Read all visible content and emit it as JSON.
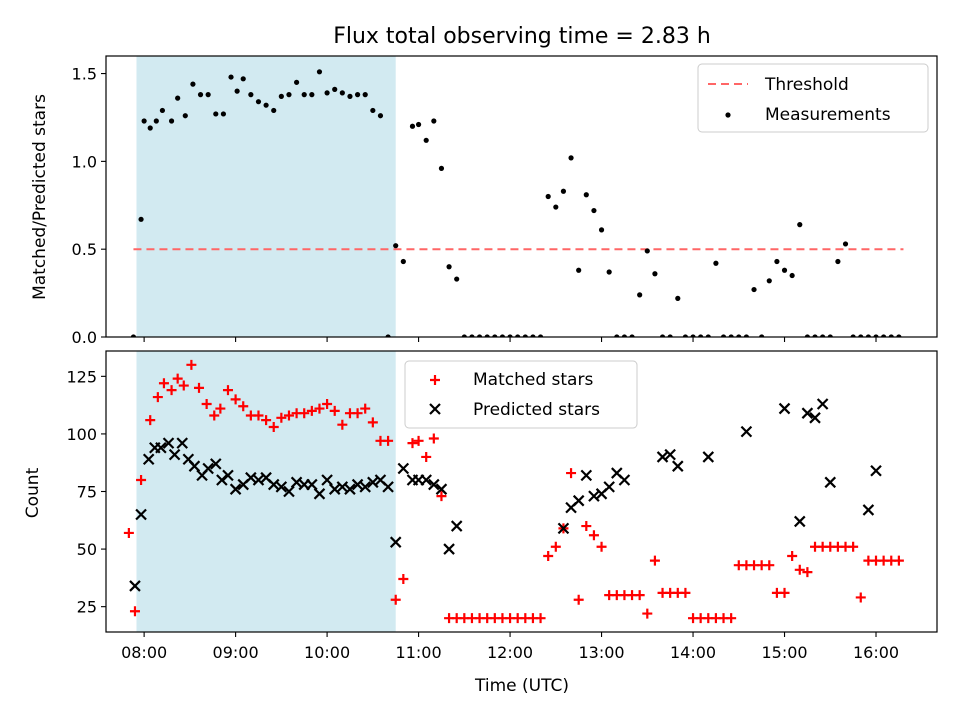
{
  "chart_data": [
    {
      "type": "scatter",
      "title": "Flux total observing time = 2.83 h",
      "xlabel": "",
      "ylabel": "Matched/Predicted stars",
      "xlim": [
        "07:35",
        "16:40"
      ],
      "ylim": [
        0,
        1.6
      ],
      "y_ticks": [
        "0.0",
        "0.5",
        "1.0",
        "1.5"
      ],
      "x_ticks_hours": [
        8,
        9,
        10,
        11,
        12,
        13,
        14,
        15,
        16
      ],
      "shaded_interval": [
        "07:55",
        "10:45"
      ],
      "shade_color": "#add8e6",
      "threshold": {
        "name": "Threshold",
        "y": 0.5,
        "x_range": [
          "07:53",
          "16:18"
        ],
        "color": "#ff6666",
        "style": "dashed"
      },
      "legend": {
        "position": "top-right",
        "entries": [
          "Threshold",
          "Measurements"
        ]
      },
      "series": [
        {
          "name": "Measurements",
          "marker": "dot",
          "color": "#000000",
          "x": [
            "07:53",
            "07:58",
            "08:00",
            "08:04",
            "08:08",
            "08:12",
            "08:18",
            "08:22",
            "08:27",
            "08:32",
            "08:37",
            "08:42",
            "08:47",
            "08:52",
            "08:57",
            "09:01",
            "09:05",
            "09:10",
            "09:15",
            "09:20",
            "09:25",
            "09:30",
            "09:35",
            "09:40",
            "09:45",
            "09:50",
            "09:55",
            "10:00",
            "10:05",
            "10:10",
            "10:15",
            "10:20",
            "10:25",
            "10:30",
            "10:35",
            "10:40",
            "10:45",
            "10:50",
            "10:56",
            "11:00",
            "11:05",
            "11:10",
            "11:15",
            "11:20",
            "11:25",
            "11:30",
            "11:35",
            "11:40",
            "11:45",
            "11:50",
            "11:55",
            "12:00",
            "12:05",
            "12:10",
            "12:15",
            "12:20",
            "12:25",
            "12:30",
            "12:35",
            "12:40",
            "12:45",
            "12:50",
            "12:55",
            "13:00",
            "13:05",
            "13:10",
            "13:15",
            "13:20",
            "13:25",
            "13:30",
            "13:35",
            "13:40",
            "13:45",
            "13:50",
            "13:55",
            "14:00",
            "14:05",
            "14:10",
            "14:15",
            "14:20",
            "14:25",
            "14:30",
            "14:35",
            "14:40",
            "14:45",
            "14:50",
            "14:55",
            "15:00",
            "15:05",
            "15:10",
            "15:15",
            "15:20",
            "15:25",
            "15:30",
            "15:35",
            "15:40",
            "15:45",
            "15:50",
            "15:55",
            "16:00",
            "16:05",
            "16:10",
            "16:15"
          ],
          "y": [
            0.0,
            0.67,
            1.23,
            1.19,
            1.23,
            1.29,
            1.23,
            1.36,
            1.26,
            1.44,
            1.38,
            1.38,
            1.27,
            1.27,
            1.48,
            1.4,
            1.47,
            1.38,
            1.34,
            1.32,
            1.29,
            1.37,
            1.38,
            1.45,
            1.38,
            1.38,
            1.51,
            1.39,
            1.41,
            1.39,
            1.37,
            1.38,
            1.38,
            1.29,
            1.26,
            0.0,
            0.52,
            0.43,
            1.2,
            1.21,
            1.12,
            1.23,
            0.96,
            0.4,
            0.33,
            0.0,
            0.0,
            0.0,
            0.0,
            0.0,
            0.0,
            0.0,
            0.0,
            0.0,
            0.0,
            0.0,
            0.8,
            0.74,
            0.83,
            1.02,
            0.38,
            0.81,
            0.72,
            0.61,
            0.37,
            0.0,
            0.0,
            0.0,
            0.24,
            0.49,
            0.36,
            0.0,
            0.0,
            0.22,
            0.0,
            0.0,
            0.0,
            0.0,
            0.42,
            0.0,
            0.0,
            0.0,
            0.0,
            0.27,
            0.0,
            0.32,
            0.43,
            0.38,
            0.35,
            0.64,
            0.0,
            0.0,
            0.0,
            0.0,
            0.43,
            0.53,
            0.0,
            0.0,
            0.0,
            0.0,
            0.0,
            0.0,
            0.0
          ]
        }
      ]
    },
    {
      "type": "scatter",
      "title": "",
      "xlabel": "Time (UTC)",
      "ylabel": "Count",
      "xlim": [
        "07:35",
        "16:40"
      ],
      "ylim": [
        14,
        136
      ],
      "y_ticks": [
        "25",
        "50",
        "75",
        "100",
        "125"
      ],
      "x_ticks": [
        "08:00",
        "09:00",
        "10:00",
        "11:00",
        "12:00",
        "13:00",
        "14:00",
        "15:00",
        "16:00"
      ],
      "shaded_interval": [
        "07:55",
        "10:45"
      ],
      "shade_color": "#add8e6",
      "legend": {
        "position": "top-center",
        "entries": [
          "Matched stars",
          "Predicted stars"
        ]
      },
      "series": [
        {
          "name": "Matched stars",
          "marker": "plus",
          "color": "#ff0000",
          "x": [
            "07:50",
            "07:54",
            "07:58",
            "08:04",
            "08:09",
            "08:13",
            "08:18",
            "08:22",
            "08:26",
            "08:31",
            "08:36",
            "08:41",
            "08:46",
            "08:50",
            "08:55",
            "09:00",
            "09:05",
            "09:10",
            "09:15",
            "09:20",
            "09:25",
            "09:30",
            "09:35",
            "09:40",
            "09:45",
            "09:50",
            "09:55",
            "10:00",
            "10:05",
            "10:10",
            "10:15",
            "10:20",
            "10:25",
            "10:30",
            "10:35",
            "10:40",
            "10:45",
            "10:50",
            "10:56",
            "11:00",
            "11:05",
            "11:10",
            "11:15",
            "11:20",
            "11:25",
            "11:30",
            "11:35",
            "11:40",
            "11:45",
            "11:50",
            "11:55",
            "12:00",
            "12:05",
            "12:10",
            "12:15",
            "12:20",
            "12:25",
            "12:30",
            "12:35",
            "12:40",
            "12:45",
            "12:50",
            "12:55",
            "13:00",
            "13:05",
            "13:10",
            "13:15",
            "13:20",
            "13:25",
            "13:30",
            "13:35",
            "13:40",
            "13:45",
            "13:50",
            "13:55",
            "14:00",
            "14:05",
            "14:10",
            "14:15",
            "14:20",
            "14:25",
            "14:30",
            "14:35",
            "14:40",
            "14:45",
            "14:50",
            "14:55",
            "15:00",
            "15:05",
            "15:10",
            "15:15",
            "15:20",
            "15:25",
            "15:30",
            "15:35",
            "15:40",
            "15:45",
            "15:50",
            "15:55",
            "16:00",
            "16:05",
            "16:10",
            "16:15"
          ],
          "y": [
            57,
            23,
            80,
            106,
            116,
            122,
            119,
            124,
            121,
            130,
            120,
            113,
            108,
            111,
            119,
            115,
            112,
            108,
            108,
            106,
            103,
            107,
            108,
            109,
            109,
            110,
            111,
            113,
            110,
            104,
            109,
            109,
            111,
            105,
            97,
            97,
            28,
            37,
            96,
            97,
            90,
            98,
            73,
            20,
            20,
            20,
            20,
            20,
            20,
            20,
            20,
            20,
            20,
            20,
            20,
            20,
            47,
            51,
            59,
            83,
            28,
            60,
            56,
            51,
            30,
            30,
            30,
            30,
            30,
            22,
            45,
            31,
            31,
            31,
            31,
            20,
            20,
            20,
            20,
            20,
            20,
            43,
            43,
            43,
            43,
            43,
            31,
            31,
            47,
            41,
            40,
            51,
            51,
            51,
            51,
            51,
            51,
            29,
            45,
            45,
            45,
            45,
            45
          ]
        },
        {
          "name": "Predicted stars",
          "marker": "x",
          "color": "#000000",
          "x": [
            "07:54",
            "07:58",
            "08:03",
            "08:07",
            "08:11",
            "08:16",
            "08:20",
            "08:25",
            "08:29",
            "08:33",
            "08:38",
            "08:42",
            "08:47",
            "08:51",
            "08:55",
            "09:00",
            "09:05",
            "09:10",
            "09:15",
            "09:20",
            "09:25",
            "09:30",
            "09:35",
            "09:40",
            "09:45",
            "09:50",
            "09:55",
            "10:00",
            "10:05",
            "10:10",
            "10:15",
            "10:20",
            "10:25",
            "10:30",
            "10:35",
            "10:40",
            "10:45",
            "10:50",
            "10:56",
            "11:00",
            "11:05",
            "11:10",
            "11:15",
            "11:20",
            "11:25",
            "12:35",
            "12:40",
            "12:45",
            "12:50",
            "12:55",
            "13:00",
            "13:05",
            "13:10",
            "13:15",
            "13:40",
            "13:45",
            "13:50",
            "14:10",
            "14:35",
            "15:00",
            "15:10",
            "15:15",
            "15:20",
            "15:25",
            "15:30",
            "15:55",
            "16:00"
          ],
          "y": [
            34,
            65,
            89,
            94,
            94,
            96,
            91,
            96,
            89,
            86,
            82,
            85,
            87,
            80,
            82,
            76,
            78,
            81,
            80,
            81,
            78,
            77,
            75,
            79,
            78,
            78,
            74,
            80,
            76,
            77,
            76,
            78,
            77,
            79,
            80,
            77,
            53,
            85,
            80,
            80,
            80,
            78,
            76,
            50,
            60,
            59,
            68,
            71,
            82,
            73,
            74,
            77,
            83,
            80,
            90,
            91,
            86,
            90,
            101,
            111,
            62,
            109,
            107,
            113,
            79,
            67,
            84
          ]
        }
      ]
    }
  ]
}
